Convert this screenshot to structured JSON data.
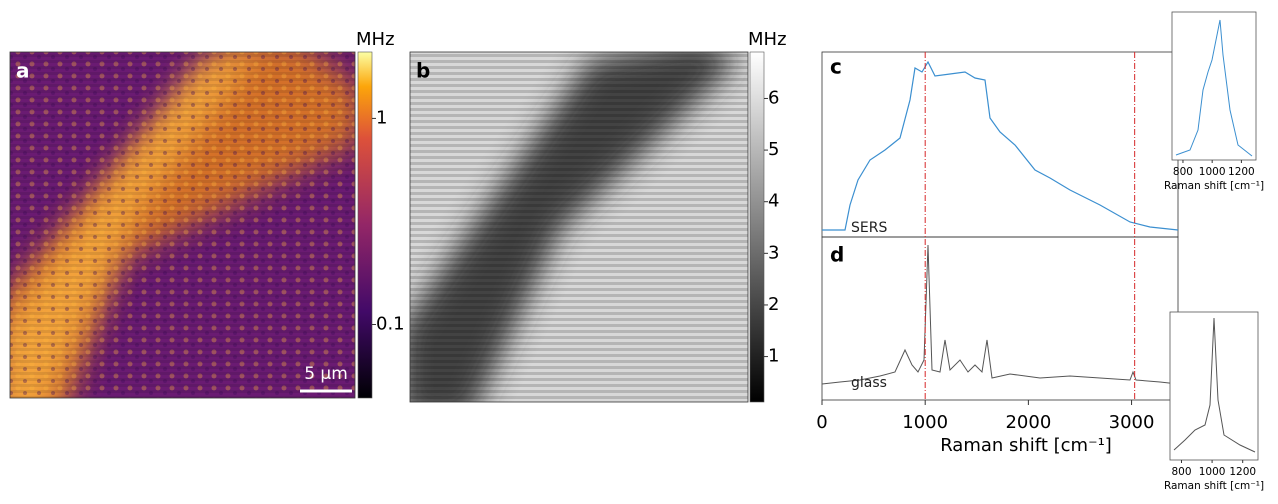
{
  "panel_a": {
    "label": "a",
    "colorbar_unit": "MHz",
    "colorbar_scale": "log",
    "colorbar_lim": [
      0.044,
      2.1
    ],
    "colorbar_ticks": [
      1,
      0.1
    ],
    "scale_bar": "5 μm"
  },
  "panel_b": {
    "label": "b",
    "colorbar_unit": "MHz",
    "colorbar_lim": [
      0.12,
      6.9
    ],
    "colorbar_ticks": [
      1,
      2,
      3,
      4,
      5,
      6
    ]
  },
  "panel_c": {
    "label": "c",
    "trace_label": "SERS"
  },
  "panel_d": {
    "label": "d",
    "trace_label": "glass"
  },
  "spectrum_axis": {
    "xlabel": "Raman shift [cm⁻¹]",
    "xlim": [
      0,
      3450
    ],
    "xticks": [
      0,
      1000,
      2000,
      3000
    ],
    "reference_lines": [
      1000,
      3030
    ]
  },
  "insets": [
    {
      "xlabel": "Raman shift [cm⁻¹]",
      "xlim": [
        725,
        1300
      ],
      "xticks": [
        800,
        1000,
        1200
      ]
    },
    {
      "xlabel": "Raman shift [cm⁻¹]",
      "xlim": [
        725,
        1300
      ],
      "xticks": [
        800,
        1000,
        1200
      ]
    }
  ]
}
